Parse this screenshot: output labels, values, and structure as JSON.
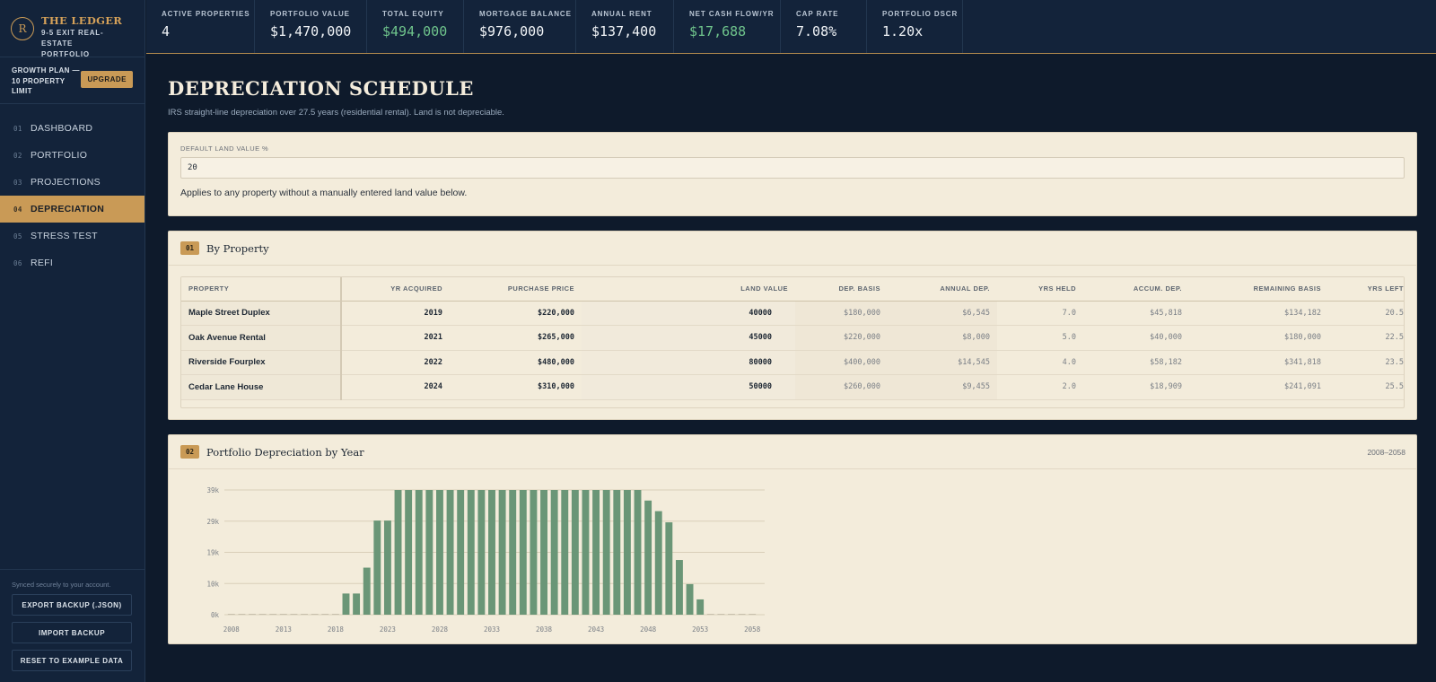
{
  "brand": {
    "logo": "R",
    "name": "THE LEDGER",
    "subtitle_line1": "9-5 EXIT REAL-ESTATE",
    "subtitle_line2": "PORTFOLIO"
  },
  "plan": {
    "text": "GROWTH PLAN — 10 PROPERTY LIMIT",
    "upgrade_label": "UPGRADE"
  },
  "nav": [
    {
      "num": "01",
      "label": "DASHBOARD",
      "active": false
    },
    {
      "num": "02",
      "label": "PORTFOLIO",
      "active": false
    },
    {
      "num": "03",
      "label": "PROJECTIONS",
      "active": false
    },
    {
      "num": "04",
      "label": "DEPRECIATION",
      "active": true
    },
    {
      "num": "05",
      "label": "STRESS TEST",
      "active": false
    },
    {
      "num": "06",
      "label": "REFI",
      "active": false
    }
  ],
  "sidebar_bottom": {
    "sync_text": "Synced securely to your account.",
    "export_label": "EXPORT BACKUP (.JSON)",
    "import_label": "IMPORT BACKUP",
    "reset_label": "RESET TO EXAMPLE DATA"
  },
  "kpis": [
    {
      "label": "ACTIVE PROPERTIES",
      "value": "4",
      "positive": false
    },
    {
      "label": "PORTFOLIO VALUE",
      "value": "$1,470,000",
      "positive": false
    },
    {
      "label": "TOTAL EQUITY",
      "value": "$494,000",
      "positive": true
    },
    {
      "label": "MORTGAGE BALANCE",
      "value": "$976,000",
      "positive": false
    },
    {
      "label": "ANNUAL RENT",
      "value": "$137,400",
      "positive": false
    },
    {
      "label": "NET CASH FLOW/YR",
      "value": "$17,688",
      "positive": true
    },
    {
      "label": "CAP RATE",
      "value": "7.08%",
      "positive": false
    },
    {
      "label": "PORTFOLIO DSCR",
      "value": "1.20x",
      "positive": false
    }
  ],
  "page": {
    "title": "DEPRECIATION SCHEDULE",
    "subtitle": "IRS straight-line depreciation over 27.5 years (residential rental). Land is not depreciable."
  },
  "land": {
    "label": "DEFAULT LAND VALUE %",
    "value": "20",
    "help": "Applies to any property without a manually entered land value below."
  },
  "by_property": {
    "badge": "01",
    "title": "By Property",
    "columns": [
      "PROPERTY",
      "YR ACQUIRED",
      "PURCHASE PRICE",
      "LAND VALUE",
      "DEP. BASIS",
      "ANNUAL DEP.",
      "YRS HELD",
      "ACCUM. DEP.",
      "REMAINING BASIS",
      "YRS LEFT"
    ],
    "rows": [
      [
        "Maple Street Duplex",
        "2019",
        "$220,000",
        "40000",
        "$180,000",
        "$6,545",
        "7.0",
        "$45,818",
        "$134,182",
        "20.5"
      ],
      [
        "Oak Avenue Rental",
        "2021",
        "$265,000",
        "45000",
        "$220,000",
        "$8,000",
        "5.0",
        "$40,000",
        "$180,000",
        "22.5"
      ],
      [
        "Riverside Fourplex",
        "2022",
        "$480,000",
        "80000",
        "$400,000",
        "$14,545",
        "4.0",
        "$58,182",
        "$341,818",
        "23.5"
      ],
      [
        "Cedar Lane House",
        "2024",
        "$310,000",
        "50000",
        "$260,000",
        "$9,455",
        "2.0",
        "$18,909",
        "$241,091",
        "25.5"
      ]
    ]
  },
  "depreciation_panel": {
    "badge": "02",
    "title": "Portfolio Depreciation by Year",
    "range": "2008–2058"
  },
  "colors": {
    "accent": "#c99a56",
    "positive": "#6fc48c",
    "bar": "#6a9677",
    "background": "#0e1a2b",
    "panel": "#f3ecdb"
  },
  "chart_data": {
    "type": "bar",
    "x": [
      2008,
      2009,
      2010,
      2011,
      2012,
      2013,
      2014,
      2015,
      2016,
      2017,
      2018,
      2019,
      2020,
      2021,
      2022,
      2023,
      2024,
      2025,
      2026,
      2027,
      2028,
      2029,
      2030,
      2031,
      2032,
      2033,
      2034,
      2035,
      2036,
      2037,
      2038,
      2039,
      2040,
      2041,
      2042,
      2043,
      2044,
      2045,
      2046,
      2047,
      2048,
      2049,
      2050,
      2051,
      2052,
      2053,
      2054,
      2055,
      2056,
      2057,
      2058
    ],
    "values": [
      0,
      0,
      0,
      0,
      0,
      0,
      0,
      0,
      0,
      0,
      0,
      6545,
      6545,
      14545,
      29091,
      29091,
      38545,
      38545,
      38545,
      38545,
      38545,
      38545,
      38545,
      38545,
      38545,
      38545,
      38545,
      38545,
      38545,
      38545,
      38545,
      38545,
      38545,
      38545,
      38545,
      38545,
      38545,
      38545,
      38545,
      38545,
      35273,
      32000,
      28545,
      16909,
      9455,
      4727,
      0,
      0,
      0,
      0,
      0
    ],
    "xtick_labels": [
      "2008",
      "2013",
      "2018",
      "2023",
      "2028",
      "2033",
      "2038",
      "2043",
      "2048",
      "2053",
      "2058"
    ],
    "ytick_labels": [
      "0k",
      "10k",
      "19k",
      "29k",
      "39k"
    ],
    "ylim": [
      0,
      38545
    ],
    "grid": true,
    "legend": "none",
    "title": "Portfolio Depreciation by Year"
  }
}
